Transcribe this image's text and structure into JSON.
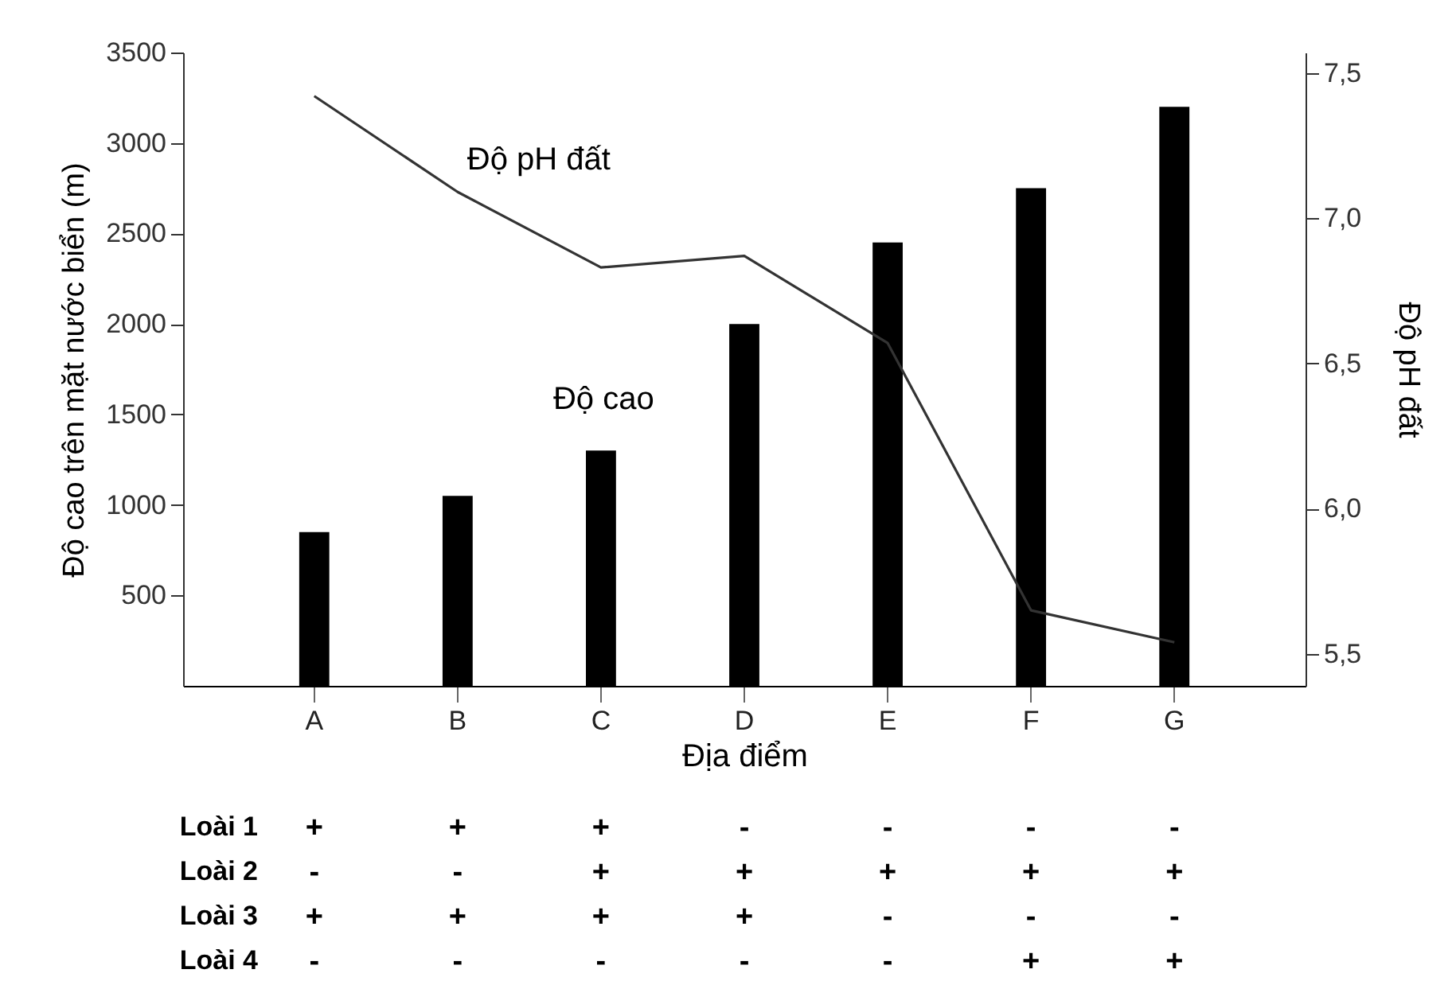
{
  "chart_data": {
    "type": "bar",
    "xlabel": "Địa điểm",
    "ylabel": "Độ cao trên mặt nước biển (m)",
    "y2label": "Độ pH đất",
    "categories": [
      "A",
      "B",
      "C",
      "D",
      "E",
      "F",
      "G"
    ],
    "series": [
      {
        "name": "Độ cao",
        "color": "#000000",
        "values": [
          850,
          1050,
          1300,
          2000,
          2450,
          2750,
          3200
        ]
      },
      {
        "name": "Độ pH đất",
        "type": "line",
        "axis": "y2",
        "color": "#333333",
        "values": [
          7.42,
          7.09,
          6.83,
          6.87,
          6.57,
          5.65,
          5.54
        ]
      }
    ],
    "ylim": [
      0,
      3500
    ],
    "yticks": [
      500,
      1000,
      1500,
      2000,
      2500,
      3000,
      3500
    ],
    "y2lim": [
      5.39,
      7.57
    ],
    "y2ticks": [
      {
        "value": 5.5,
        "label": "5,5"
      },
      {
        "value": 6.0,
        "label": "6,0"
      },
      {
        "value": 6.5,
        "label": "6,5"
      },
      {
        "value": 7.0,
        "label": "7,0"
      },
      {
        "value": 7.5,
        "label": "7,5"
      }
    ],
    "grid": false,
    "annotations": [
      "Loài 1",
      "+",
      "+",
      "+",
      "-",
      "-",
      "-",
      "-",
      "Loài 2",
      "-",
      "-",
      "+",
      "+",
      "+",
      "+",
      "+",
      "Loài 3",
      "+",
      "+",
      "+",
      "+",
      "-",
      "-",
      "-",
      "Loài 4",
      "-",
      "-",
      "-",
      "-",
      "-",
      "+",
      "+"
    ]
  }
}
